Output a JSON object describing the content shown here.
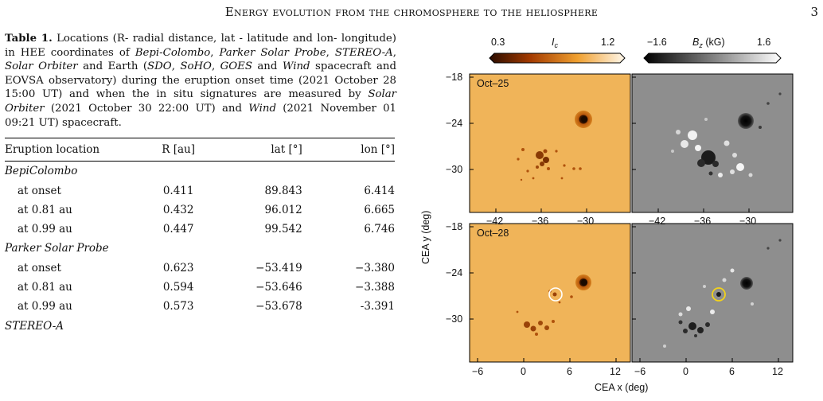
{
  "header": {
    "running_title": "Energy evolution from the chromosphere to the heliosphere",
    "page_number": "3"
  },
  "caption": {
    "label": "Table 1.",
    "t1": " Locations (R- radial distance, lat - latitude and lon- longitude) in HEE coordinates of ",
    "bepi": "Bepi-Colombo",
    "sep1": ", ",
    "psp": "Parker Solar Probe",
    "sep2": ", ",
    "stereo": "STEREO-A",
    "sep3": ", ",
    "solo": "Solar Orbiter",
    "t2": " and Earth (",
    "sdo": "SDO",
    "sep4": ", ",
    "soho": "SoHO",
    "sep5": ", ",
    "goes": "GOES",
    "t3": " and ",
    "wind": "Wind",
    "t4": " spacecraft and EOVSA observatory) during the eruption onset time (2021 October 28 15:00 UT) and when the in situ signatures are measured by ",
    "solo2": "Solar Orbiter",
    "t5": " (2021 October 30 22:00 UT) and ",
    "wind2": "Wind",
    "t6": " (2021 November 01 09:21 UT) spacecraft."
  },
  "table": {
    "headers": [
      "Eruption location",
      "R [au]",
      "lat [°]",
      "lon [°]"
    ],
    "groups": [
      {
        "name": "BepiColombo",
        "rows": [
          [
            "at onset",
            "0.411",
            "89.843",
            "6.414"
          ],
          [
            "at 0.81 au",
            "0.432",
            "96.012",
            "6.665"
          ],
          [
            "at 0.99 au",
            "0.447",
            "99.542",
            "6.746"
          ]
        ]
      },
      {
        "name": "Parker Solar Probe",
        "rows": [
          [
            "at onset",
            "0.623",
            "−53.419",
            "−3.380"
          ],
          [
            "at 0.81 au",
            "0.594",
            "−53.646",
            "−3.388"
          ],
          [
            "at 0.99 au",
            "0.573",
            "−53.678",
            "-3.391"
          ]
        ]
      },
      {
        "name": "STEREO-A",
        "rows": []
      }
    ]
  },
  "figure": {
    "colorbar_ic": {
      "label": "I",
      "label_sub": "c",
      "min": "0.3",
      "max": "1.2"
    },
    "colorbar_bz": {
      "label": "B",
      "label_sub": "z",
      "unit": " (kG)",
      "min": "−1.6",
      "max": "1.6"
    },
    "panel_labels": [
      "Oct–25",
      "Oct–28"
    ],
    "ylabel": "CEA y (deg)",
    "xlabel": "CEA x (deg)",
    "y_ticks": [
      "−18",
      "−24",
      "−30"
    ],
    "top_x_ticks": [
      "−42",
      "−36",
      "−30"
    ],
    "bottom_x_ticks": [
      "−6",
      "0",
      "6",
      "12"
    ],
    "colors": {
      "continuum_bg": "#f0b657",
      "magnetogram_bg": "#8e8e8e",
      "highlight_circle_ic": "#ffffff",
      "highlight_circle_bz": "#f2d21b"
    }
  }
}
